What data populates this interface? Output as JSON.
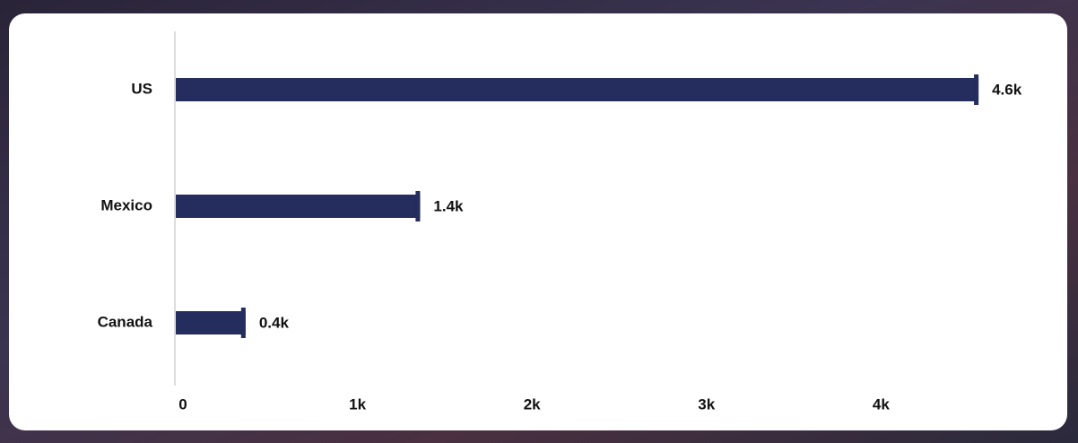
{
  "chart_data": {
    "type": "hbar",
    "categories": [
      "US",
      "Mexico",
      "Canada"
    ],
    "values": [
      4600,
      1400,
      400
    ],
    "value_labels": [
      "4.6k",
      "1.4k",
      "0.4k"
    ],
    "color": "#252c5e",
    "xlim": [
      0,
      4800
    ],
    "xticks": [
      0,
      {
        "value": 1000,
        "label": "1k"
      },
      {
        "value": 2000,
        "label": "2k"
      },
      {
        "value": 3000,
        "label": "3k"
      },
      {
        "value": 4000,
        "label": "4k"
      }
    ],
    "grid": false
  }
}
